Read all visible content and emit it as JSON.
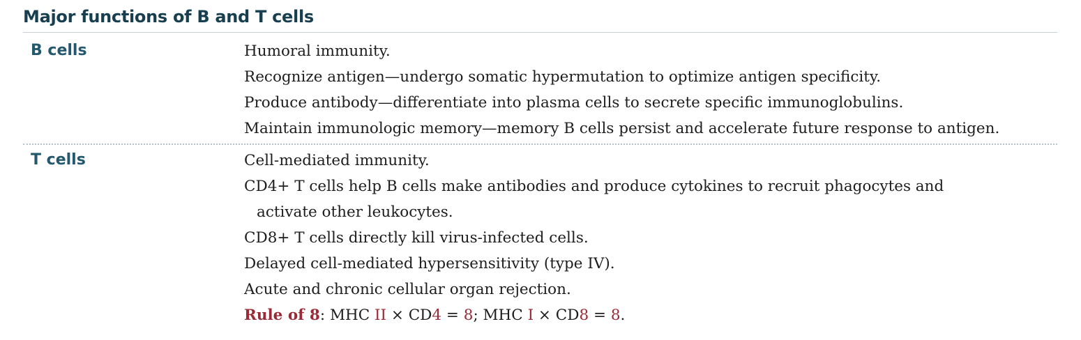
{
  "title": "Major functions of B and T cells",
  "b_cells": {
    "label": "B cells",
    "lines": [
      "Humoral immunity.",
      "Recognize antigen—undergo somatic hypermutation to optimize antigen specificity.",
      "Produce antibody—differentiate into plasma cells to secrete specific immunoglobulins.",
      "Maintain immunologic memory—memory B cells persist and accelerate future response to antigen."
    ]
  },
  "t_cells": {
    "label": "T cells",
    "lines": [
      "Cell-mediated immunity.",
      "CD4+ T cells help B cells make antibodies and produce cytokines to recruit phagocytes and",
      "activate other leukocytes.",
      "CD8+ T cells directly kill virus-infected cells.",
      "Delayed cell-mediated hypersensitivity (type IV).",
      "Acute and chronic cellular organ rejection."
    ],
    "rule_of_8": {
      "label": "Rule of 8",
      "sep1": ": MHC ",
      "mhc2": "II",
      "times1": " × CD",
      "cd4": "4",
      "eq1": " = ",
      "eight1": "8",
      "sep2": "; MHC ",
      "mhc1": "I",
      "times2": " × CD",
      "cd8": "8",
      "eq2": " = ",
      "eight2": "8",
      "end": "."
    }
  },
  "colors": {
    "title": "#173f50",
    "row_label": "#23586e",
    "highlight": "#9a2a35",
    "body_text": "#1d1d1d"
  }
}
